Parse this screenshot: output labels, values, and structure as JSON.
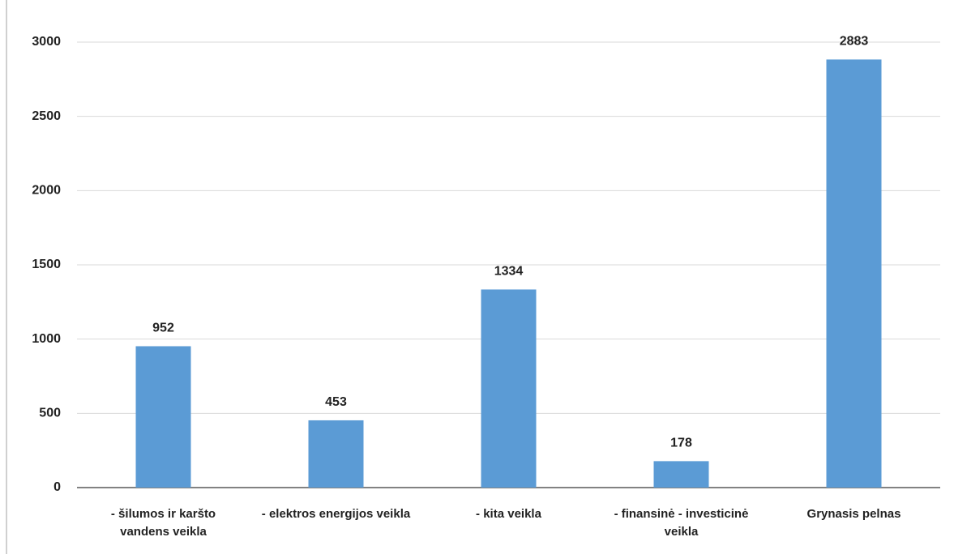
{
  "chart_data": {
    "type": "bar",
    "categories": [
      "- šilumos ir karšto vandens veikla",
      "- elektros energijos veikla",
      "- kita veikla",
      "- finansinė - investicinė veikla",
      "Grynasis pelnas"
    ],
    "values": [
      952,
      453,
      1334,
      178,
      2883
    ],
    "color": "#5b9bd5",
    "ylim": [
      0,
      3000
    ],
    "yticks": [
      0,
      500,
      1000,
      1500,
      2000,
      2500,
      3000
    ],
    "grid": true
  }
}
